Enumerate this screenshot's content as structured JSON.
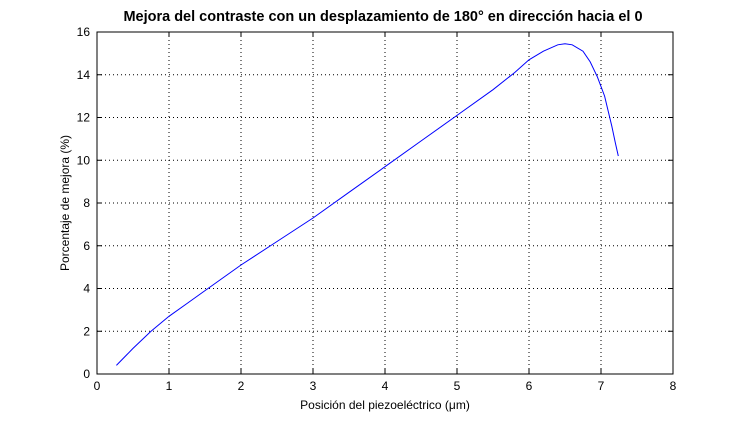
{
  "chart_data": {
    "type": "line",
    "title": "Mejora del contraste con un desplazamiento de 180° en dirección hacia el 0",
    "xlabel": "Posición del piezoeléctrico (μm)",
    "ylabel": "Porcentaje de mejora (%)",
    "xlim": [
      0,
      8
    ],
    "ylim": [
      0,
      16
    ],
    "xticks": [
      "0",
      "1",
      "2",
      "3",
      "4",
      "5",
      "6",
      "7",
      "8"
    ],
    "yticks": [
      "0",
      "2",
      "4",
      "6",
      "8",
      "10",
      "12",
      "14",
      "16"
    ],
    "grid": true,
    "legend": "none",
    "colors": {
      "series": "#0000ff",
      "frame": "#000000",
      "background": "#ffffff"
    },
    "series": [
      {
        "x": [
          0.27,
          0.5,
          0.75,
          1.0,
          1.25,
          1.5,
          2.0,
          2.5,
          3.0,
          3.5,
          4.0,
          4.5,
          5.0,
          5.5,
          5.8,
          6.0,
          6.2,
          6.4,
          6.5,
          6.6,
          6.75,
          6.85,
          6.95,
          7.05,
          7.1,
          7.15,
          7.2,
          7.24
        ],
        "y": [
          0.4,
          1.2,
          2.0,
          2.7,
          3.3,
          3.9,
          5.1,
          6.2,
          7.3,
          8.5,
          9.7,
          10.9,
          12.1,
          13.3,
          14.1,
          14.7,
          15.1,
          15.4,
          15.45,
          15.4,
          15.1,
          14.6,
          13.9,
          13.0,
          12.3,
          11.6,
          10.8,
          10.2
        ]
      }
    ]
  }
}
